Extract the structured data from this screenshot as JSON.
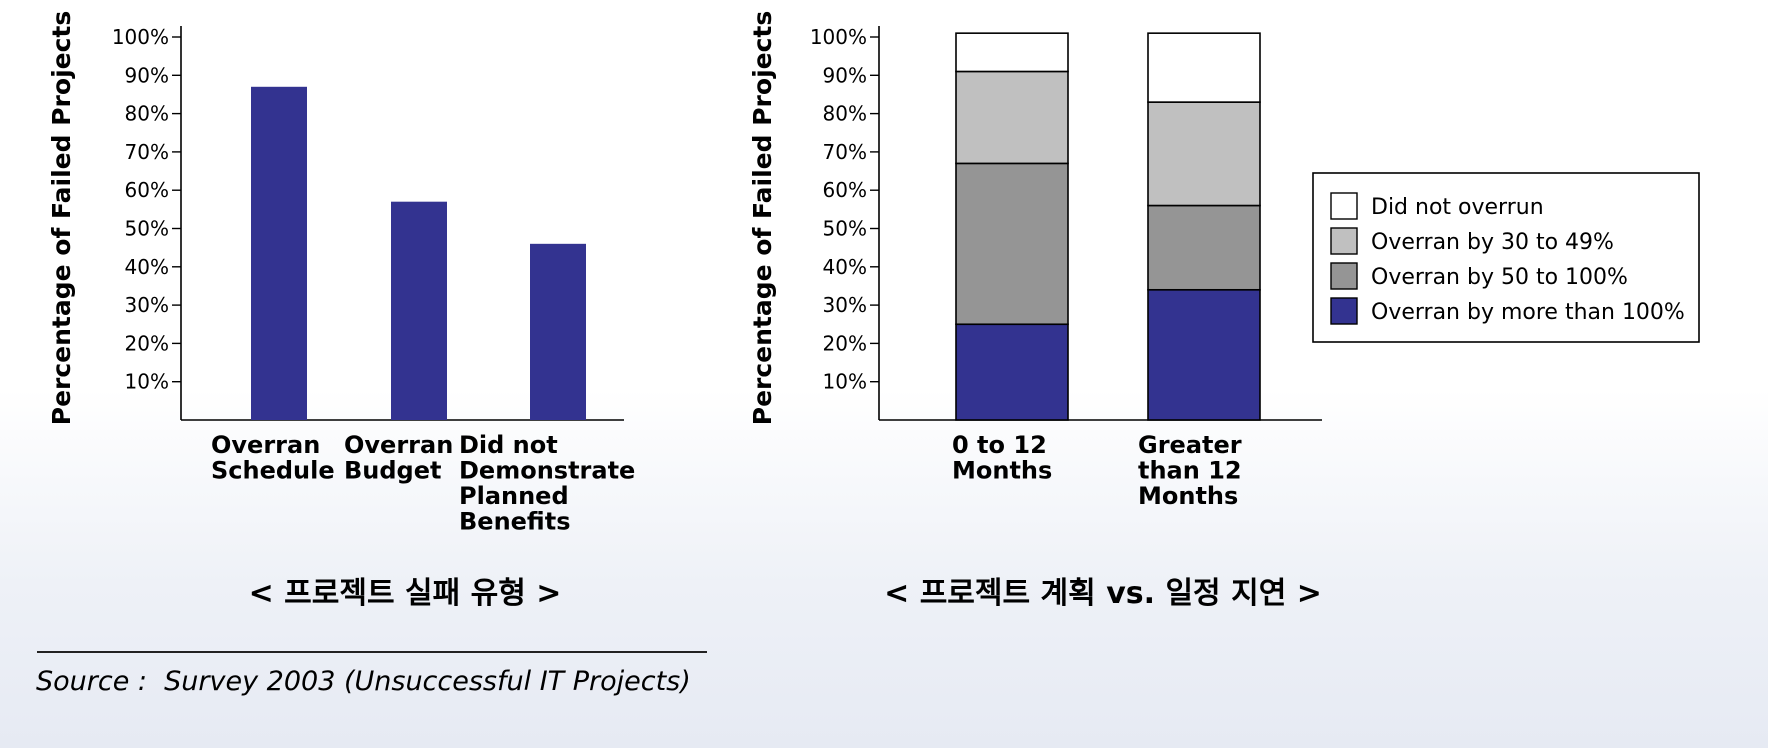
{
  "chart_data": [
    {
      "type": "bar",
      "ylabel": "Percentage of Failed Projects",
      "ylim": [
        0,
        100
      ],
      "yticks": [
        "10%",
        "20%",
        "30%",
        "40%",
        "50%",
        "60%",
        "70%",
        "80%",
        "90%",
        "100%"
      ],
      "categories": [
        [
          "Overran",
          "Schedule"
        ],
        [
          "Overran",
          "Budget"
        ],
        [
          "Did not",
          "Demonstrate",
          "Planned",
          "Benefits"
        ]
      ],
      "values": [
        87,
        57,
        46
      ],
      "bar_color": "#333390",
      "grid": false
    },
    {
      "type": "bar",
      "stacked": true,
      "ylabel": "Percentage of Failed Projects",
      "ylim": [
        0,
        100
      ],
      "yticks": [
        "10%",
        "20%",
        "30%",
        "40%",
        "50%",
        "60%",
        "70%",
        "80%",
        "90%",
        "100%"
      ],
      "categories": [
        [
          "0 to 12",
          "Months"
        ],
        [
          "Greater",
          "than 12",
          "Months"
        ]
      ],
      "series": [
        {
          "name": "Overran by more than 100%",
          "values": [
            25,
            34
          ],
          "color": "#333390"
        },
        {
          "name": "Overran by 50 to 100%",
          "values": [
            42,
            22
          ],
          "color": "#959595"
        },
        {
          "name": "Overran by 30 to 49%",
          "values": [
            24,
            27
          ],
          "color": "#c0c0c0"
        },
        {
          "name": "Did not overrun",
          "values": [
            10,
            18
          ],
          "color": "#ffffff"
        }
      ],
      "legend_order": [
        "Did not overrun",
        "Overran by 30 to 49%",
        "Overran by 50 to 100%",
        "Overran by more than 100%"
      ],
      "legend_position": "right",
      "grid": false
    }
  ],
  "captions": {
    "left": "< 프로젝트 실패 유형 >",
    "right": "< 프로젝트 계획 vs. 일정 지연 >"
  },
  "source": "Source :  Survey 2003 (Unsuccessful IT Projects)"
}
